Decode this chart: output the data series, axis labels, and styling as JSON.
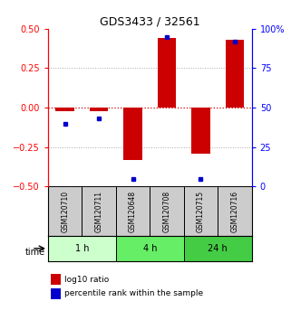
{
  "title": "GDS3433 / 32561",
  "samples": [
    "GSM120710",
    "GSM120711",
    "GSM120648",
    "GSM120708",
    "GSM120715",
    "GSM120716"
  ],
  "log10_ratio": [
    -0.02,
    -0.02,
    -0.33,
    0.44,
    -0.29,
    0.43
  ],
  "percentile_rank": [
    40,
    43,
    5,
    95,
    5,
    92
  ],
  "ylim_left": [
    -0.5,
    0.5
  ],
  "ylim_right": [
    0,
    100
  ],
  "yticks_left": [
    -0.5,
    -0.25,
    0,
    0.25,
    0.5
  ],
  "yticks_right": [
    0,
    25,
    50,
    75,
    100
  ],
  "bar_color": "#cc0000",
  "dot_color": "#0000cc",
  "hline_color": "#cc0000",
  "grid_color": "#aaaaaa",
  "time_groups": [
    {
      "label": "1 h",
      "samples": [
        0,
        1
      ],
      "color": "#ccffcc"
    },
    {
      "label": "4 h",
      "samples": [
        2,
        3
      ],
      "color": "#66ee66"
    },
    {
      "label": "24 h",
      "samples": [
        4,
        5
      ],
      "color": "#44cc44"
    }
  ],
  "time_label": "time",
  "legend_bar_label": "log10 ratio",
  "legend_dot_label": "percentile rank within the sample",
  "sample_box_color": "#cccccc",
  "background_color": "#ffffff"
}
